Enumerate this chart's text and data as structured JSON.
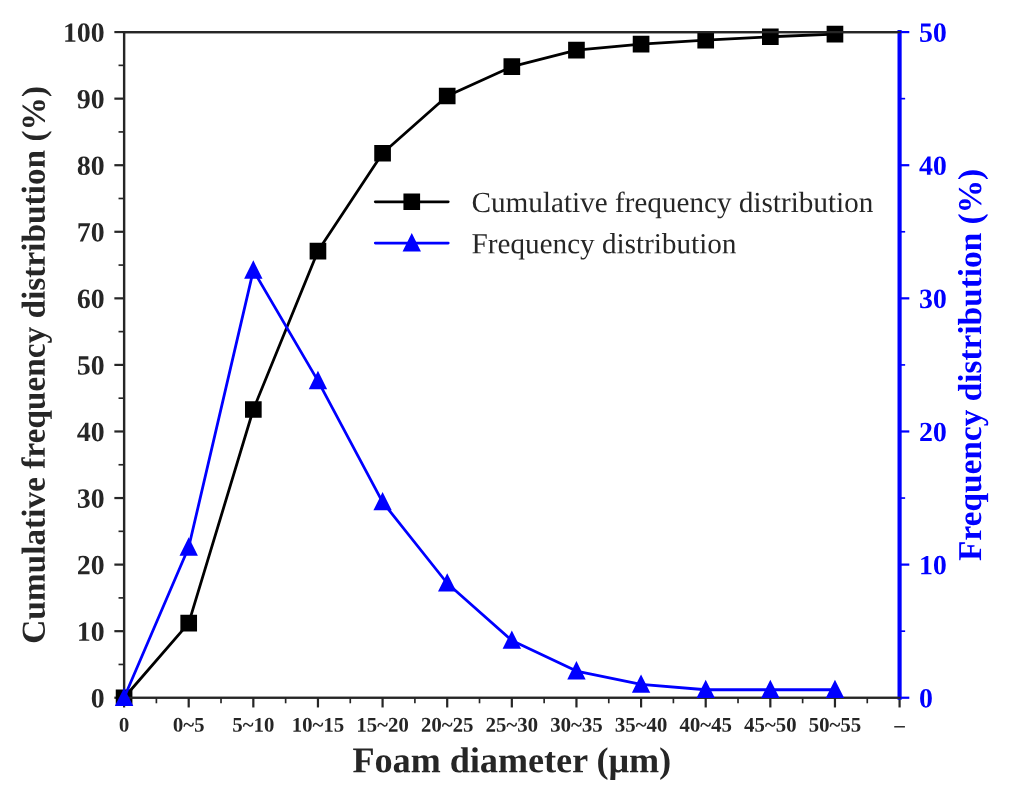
{
  "chart_data": {
    "type": "line",
    "xlabel": "Foam diameter (μm)",
    "ylabel": "Cumulative frequency distribution (%)",
    "y2label": "Frequency distribution (%)",
    "categories": [
      "0",
      "0~5",
      "5~10",
      "10~15",
      "15~20",
      "20~25",
      "25~30",
      "30~35",
      "35~40",
      "40~45",
      "45~50",
      "50~55",
      "–"
    ],
    "series": [
      {
        "name": "Cumulative frequency distribution",
        "color": "#000000",
        "marker": "square",
        "values": [
          0,
          11.2,
          43.3,
          67.1,
          81.8,
          90.4,
          94.8,
          97.3,
          98.2,
          98.8,
          99.3,
          99.7,
          null
        ]
      },
      {
        "name": "Frequency distribution",
        "color": "#0000ff",
        "marker": "triangle",
        "axis": "y2",
        "values": [
          0,
          11.3,
          32.1,
          23.8,
          14.7,
          8.6,
          4.3,
          2.0,
          1.0,
          0.6,
          0.6,
          0.6,
          null
        ]
      }
    ],
    "ylim": [
      0,
      100
    ],
    "yticks": [
      0,
      10,
      20,
      30,
      40,
      50,
      60,
      70,
      80,
      90,
      100
    ],
    "y2lim": [
      0,
      50
    ],
    "y2ticks": [
      0,
      10,
      20,
      30,
      40,
      50
    ],
    "grid": false,
    "legend": "top right",
    "line_style": "solid"
  }
}
